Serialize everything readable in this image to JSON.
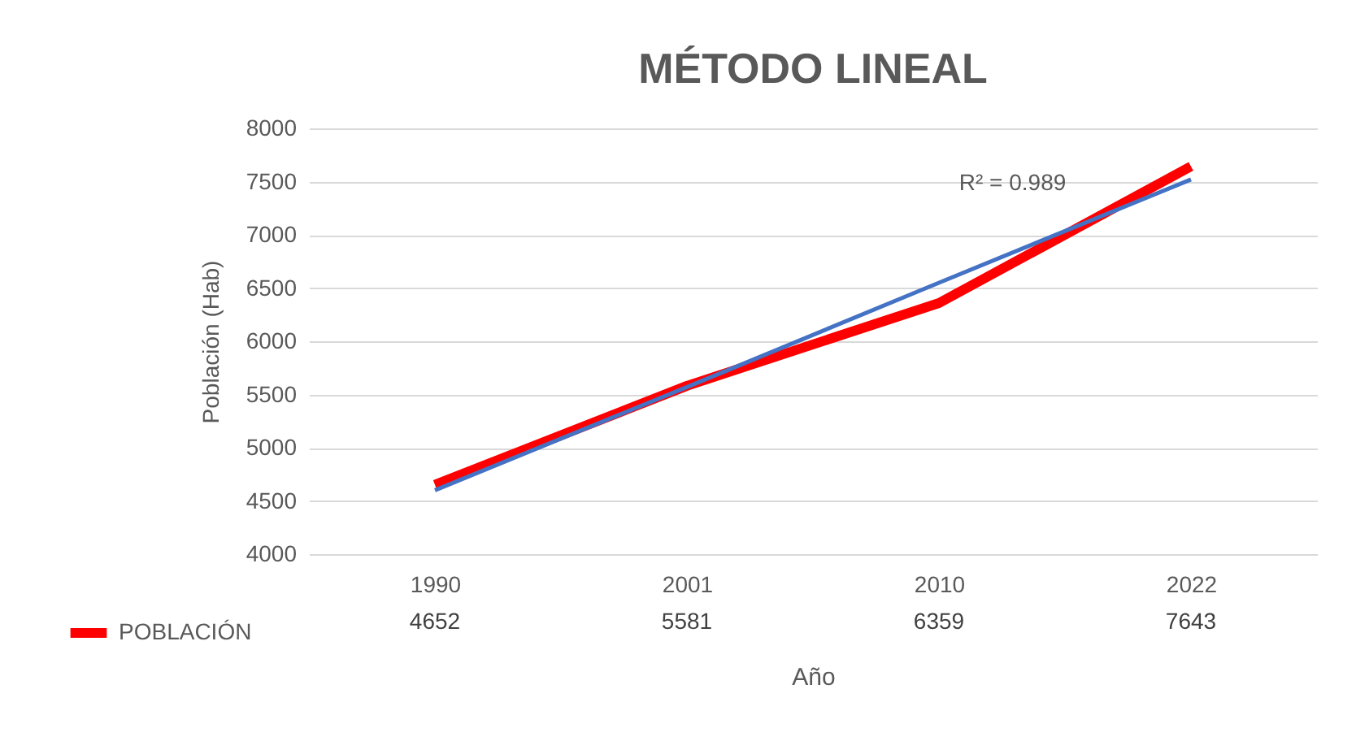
{
  "chart_data": {
    "type": "line",
    "title": "MÉTODO LINEAL",
    "xlabel": "Año",
    "ylabel": "Población (Hab)",
    "categories": [
      "1990",
      "2001",
      "2010",
      "2022"
    ],
    "series": [
      {
        "name": "POBLACIÓN",
        "color": "#ff0000",
        "values": [
          4652,
          5581,
          6359,
          7643
        ],
        "value_labels": [
          "4652",
          "5581",
          "6359",
          "7643"
        ]
      },
      {
        "type": "line",
        "color": "#4472c4",
        "values": [
          4600,
          5570,
          6550,
          7520
        ]
      }
    ],
    "annotations": [
      "R² = 0.989"
    ],
    "ylim": [
      4000,
      8000
    ],
    "yticks": [
      4000,
      4500,
      5000,
      5500,
      6000,
      6500,
      7000,
      7500,
      8000
    ],
    "grid": "y",
    "legend": "bottom left",
    "marker": "none",
    "line_style": "solid"
  }
}
